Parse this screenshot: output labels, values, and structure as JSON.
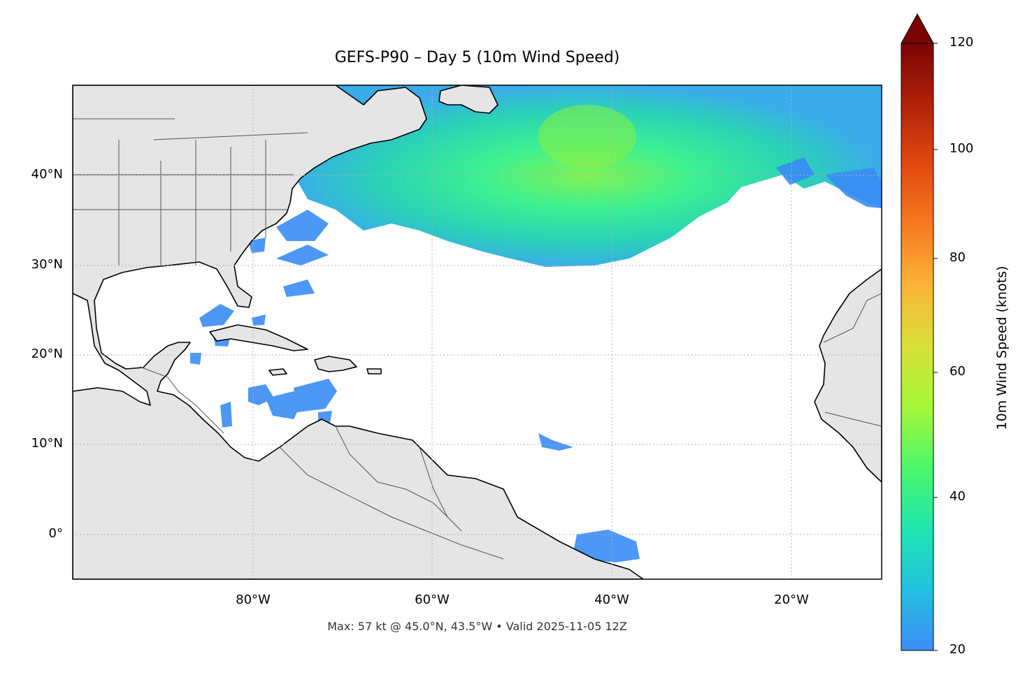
{
  "title": "GEFS-P90 – Day 5 (10m Wind Speed)",
  "footer": "Max: 57 kt @ 45.0°N, 43.5°W • Valid 2025-11-05 12Z",
  "map": {
    "lon_range": [
      -100,
      -10
    ],
    "lat_range": [
      -5,
      50
    ],
    "x_ticks": [
      "80°W",
      "60°W",
      "40°W",
      "20°W"
    ],
    "y_ticks": [
      "40°N",
      "30°N",
      "20°N",
      "10°N",
      "0°"
    ],
    "gridlines": true,
    "land_color": "#e5e5e5",
    "coastline_color": "#000000",
    "border_color": "#555555"
  },
  "colorbar": {
    "label": "10m Wind Speed (knots)",
    "ticks": [
      "120",
      "100",
      "80",
      "60",
      "40",
      "20"
    ],
    "range": [
      20,
      120
    ],
    "extend": "max",
    "colormap": "turbo"
  }
}
